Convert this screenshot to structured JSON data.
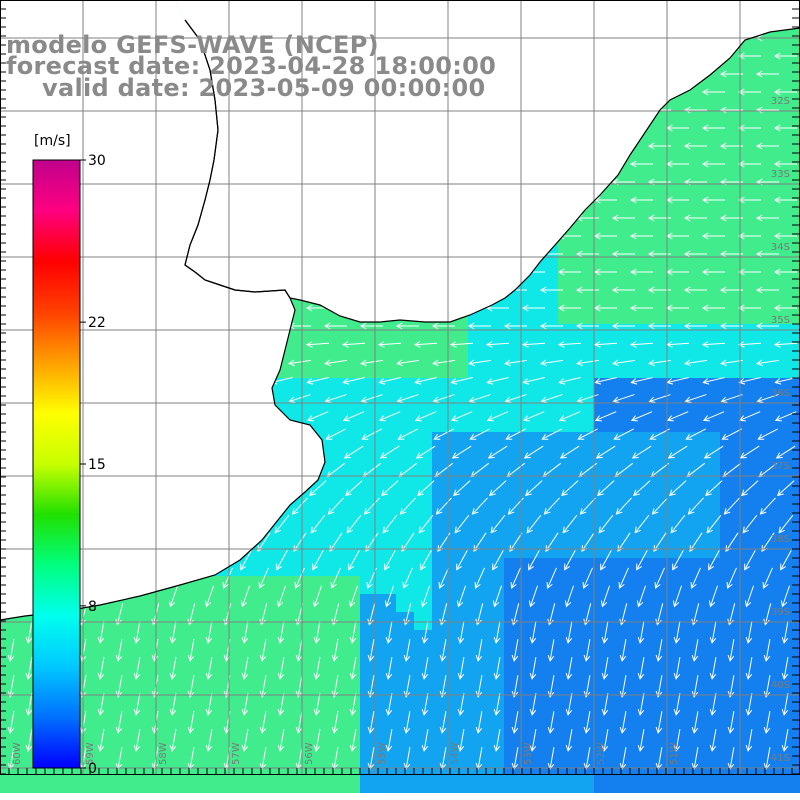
{
  "title": {
    "line1": "modelo GEFS-WAVE (NCEP)",
    "line2": "forecast date: 2023-04-28 18:00:00",
    "line3": "valid date: 2023-05-09 00:00:00"
  },
  "colorbar": {
    "units": "[m/s]",
    "ticks": [
      "30",
      "22",
      "15",
      "8",
      "0"
    ],
    "tick_values": [
      30,
      22,
      15,
      8,
      0
    ],
    "range": [
      0,
      30
    ],
    "colors": [
      "#0000ff",
      "#0070ff",
      "#00c8ff",
      "#00ffee",
      "#00ff80",
      "#20e000",
      "#c8ff00",
      "#ffff00",
      "#ffa000",
      "#ff4000",
      "#ff0000",
      "#ff0080",
      "#c0008c"
    ]
  },
  "map": {
    "lat_labels": [
      "32S",
      "33S",
      "34S",
      "35S",
      "36S",
      "37S",
      "38S",
      "39S",
      "40S",
      "41S"
    ],
    "lon_labels": [
      "60W",
      "59W",
      "58W",
      "57W",
      "56W",
      "55W",
      "54W",
      "53W",
      "52W",
      "51W"
    ],
    "ocean_field_colors": {
      "shelf_green": "#40ec8c",
      "coastal_cyan": "#10e8e8",
      "offshore_blue": "#12a4f0",
      "deep_blue": "#1480f0"
    },
    "arrow_color": "#ffffff",
    "grid_color": "#808080",
    "coast_color": "#000000"
  }
}
